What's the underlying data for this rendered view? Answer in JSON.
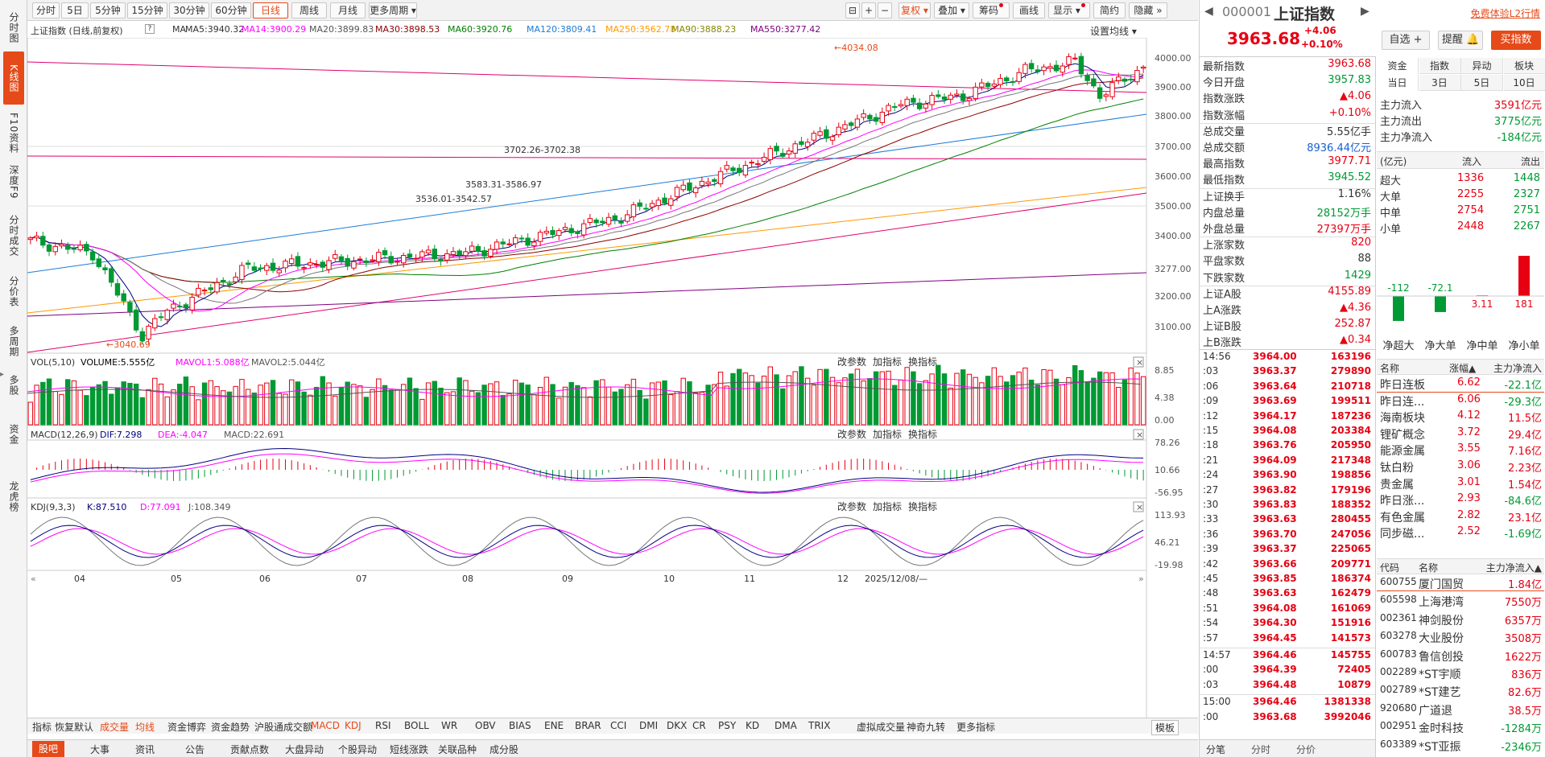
{
  "left_tabs": [
    "分时图",
    "K线图",
    "F10资料",
    "深度F9",
    "分时成交",
    "分价表",
    "多周期",
    "多股",
    "资金",
    "龙虎榜"
  ],
  "toolbar": {
    "periods": [
      "分时",
      "5日",
      "5分钟",
      "15分钟",
      "30分钟",
      "60分钟",
      "日线",
      "周线",
      "月线",
      "更多周期 ▾"
    ],
    "active_period": "日线",
    "icons": [
      "⊟",
      "+",
      "−"
    ],
    "right": [
      "复权 ▾",
      "叠加 ▾",
      "筹码",
      "画线",
      "显示 ▾",
      "简约",
      "隐藏 »"
    ]
  },
  "ma": {
    "title": "上证指数 (日线,前复权)",
    "items": [
      {
        "t": "MA",
        "c": "#333333"
      },
      {
        "t": "MA5:3940.32",
        "c": "#333333"
      },
      {
        "t": "MA14:3900.29",
        "c": "#ff00ff"
      },
      {
        "t": "MA20:3899.83",
        "c": "#555555"
      },
      {
        "t": "MA30:3898.53",
        "c": "#8b0000"
      },
      {
        "t": "MA60:3920.76",
        "c": "#008000"
      },
      {
        "t": "MA120:3809.41",
        "c": "#1e7bd6"
      },
      {
        "t": "MA250:3562.78",
        "c": "#ff9900"
      },
      {
        "t": "MA90:3888.23",
        "c": "#888800"
      },
      {
        "t": "MA550:3277.42",
        "c": "#800080"
      }
    ],
    "settings": "设置均线 ▾"
  },
  "price_axis": [
    "4000.00",
    "3900.00",
    "3800.00",
    "3700.00",
    "3600.00",
    "3500.00",
    "3400.00",
    "3277.00",
    "3200.00",
    "3100.00"
  ],
  "annotations": {
    "high": "←4034.08",
    "low": "←3040.69",
    "a1": "3702.26-3702.38",
    "a2": "3583.31-3586.97",
    "a3": "3536.01-3542.57"
  },
  "vol": {
    "title": "VOL(5,10)",
    "volume": "VOLUME:5.555亿",
    "mavol1": "MAVOL1:5.088亿",
    "mavol2": "MAVOL2:5.044亿",
    "axis": [
      "8.85",
      "4.38",
      "0.00"
    ]
  },
  "macd": {
    "title": "MACD(12,26,9)",
    "dif": "DIF:7.298",
    "dea": "DEA:-4.047",
    "macd": "MACD:22.691",
    "axis": [
      "78.26",
      "10.66",
      "-56.95"
    ]
  },
  "kdj": {
    "title": "KDJ(9,3,3)",
    "k": "K:87.510",
    "d": "D:77.091",
    "j": "J:108.349",
    "axis": [
      "113.93",
      "46.21",
      "-19.98"
    ]
  },
  "pane_tools": [
    "改参数",
    "加指标",
    "换指标"
  ],
  "months": [
    "04",
    "05",
    "06",
    "07",
    "08",
    "09",
    "10",
    "11",
    "12",
    "2025/12/08/—"
  ],
  "indicator_tabs": [
    "指标",
    "恢复默认",
    "成交量",
    "均线",
    "资金博弈",
    "资金趋势",
    "沪股通成交额",
    "MACD",
    "KDJ",
    "RSI",
    "BOLL",
    "WR",
    "OBV",
    "BIAS",
    "ENE",
    "BRAR",
    "CCI",
    "DMI",
    "DKX",
    "CR",
    "PSY",
    "KD",
    "DMA",
    "TRIX",
    "虚拟成交量",
    "神奇九转",
    "更多指标"
  ],
  "indicator_mode": "模板",
  "bottom_tabs": [
    "股吧",
    "大事",
    "资讯",
    "公告",
    "贡献点数",
    "大盘异动",
    "个股异动",
    "短线涨跌",
    "关联品种",
    "成分股"
  ],
  "stock": {
    "code": "000001",
    "name": "上证指数",
    "price": "3963.68",
    "change": "+4.06",
    "pct": "+0.10%",
    "free": "免费体验L2行情",
    "btns": [
      "自选 +",
      "提醒 🔔",
      "买指数"
    ]
  },
  "quote": [
    {
      "l": "最新指数",
      "v": "3963.68",
      "c": "red"
    },
    {
      "l": "今日开盘",
      "v": "3957.83",
      "c": "green"
    },
    {
      "l": "指数涨跌",
      "v": "▲4.06",
      "c": "red"
    },
    {
      "l": "指数涨幅",
      "v": "+0.10%",
      "c": "red"
    },
    {
      "l": "总成交量",
      "v": "5.55亿手",
      "c": "black"
    },
    {
      "l": "总成交额",
      "v": "8936.44亿元",
      "c": "blue"
    },
    {
      "l": "最高指数",
      "v": "3977.71",
      "c": "red"
    },
    {
      "l": "最低指数",
      "v": "3945.52",
      "c": "green"
    },
    {
      "l": "上证换手",
      "v": "1.16%",
      "c": "black"
    },
    {
      "l": "内盘总量",
      "v": "28152万手",
      "c": "green"
    },
    {
      "l": "外盘总量",
      "v": "27397万手",
      "c": "red"
    },
    {
      "l": "上涨家数",
      "v": "820",
      "c": "red"
    },
    {
      "l": "平盘家数",
      "v": "88",
      "c": "black"
    },
    {
      "l": "下跌家数",
      "v": "1429",
      "c": "green"
    },
    {
      "l": "上证A股",
      "v": "4155.89",
      "c": "red"
    },
    {
      "l": "上A涨跌",
      "v": "▲4.36",
      "c": "red"
    },
    {
      "l": "上证B股",
      "v": "252.87",
      "c": "red"
    },
    {
      "l": "上B涨跌",
      "v": "▲0.34",
      "c": "red"
    }
  ],
  "ticks": [
    {
      "t": "14:56",
      "p": "3964.00",
      "v": "163196"
    },
    {
      "t": ":03",
      "p": "3963.37",
      "v": "279890"
    },
    {
      "t": ":06",
      "p": "3963.64",
      "v": "210718"
    },
    {
      "t": ":09",
      "p": "3963.69",
      "v": "199511"
    },
    {
      "t": ":12",
      "p": "3964.17",
      "v": "187236"
    },
    {
      "t": ":15",
      "p": "3964.08",
      "v": "203384"
    },
    {
      "t": ":18",
      "p": "3963.76",
      "v": "205950"
    },
    {
      "t": ":21",
      "p": "3964.09",
      "v": "217348"
    },
    {
      "t": ":24",
      "p": "3963.90",
      "v": "198856"
    },
    {
      "t": ":27",
      "p": "3963.82",
      "v": "179196"
    },
    {
      "t": ":30",
      "p": "3963.83",
      "v": "188352"
    },
    {
      "t": ":33",
      "p": "3963.63",
      "v": "280455"
    },
    {
      "t": ":36",
      "p": "3963.70",
      "v": "247056"
    },
    {
      "t": ":39",
      "p": "3963.37",
      "v": "225065"
    },
    {
      "t": ":42",
      "p": "3963.66",
      "v": "209771"
    },
    {
      "t": ":45",
      "p": "3963.85",
      "v": "186374"
    },
    {
      "t": ":48",
      "p": "3963.63",
      "v": "162479"
    },
    {
      "t": ":51",
      "p": "3964.08",
      "v": "161069"
    },
    {
      "t": ":54",
      "p": "3964.30",
      "v": "151916"
    },
    {
      "t": ":57",
      "p": "3964.45",
      "v": "141573"
    },
    {
      "t": "14:57",
      "p": "3964.46",
      "v": "145755"
    },
    {
      "t": ":00",
      "p": "3964.39",
      "v": "72405"
    },
    {
      "t": ":03",
      "p": "3964.48",
      "v": "10879"
    },
    {
      "t": "15:00",
      "p": "3964.46",
      "v": "1381338"
    },
    {
      "t": ":00",
      "p": "3963.68",
      "v": "3992046"
    }
  ],
  "tick_tabs": [
    "分笔",
    "分时",
    "分价"
  ],
  "fund_tabs": [
    "资金",
    "指数",
    "异动",
    "板块"
  ],
  "fund_sub": [
    "当日",
    "3日",
    "5日",
    "10日"
  ],
  "fund": [
    {
      "l": "主力流入",
      "v": "3591亿元",
      "c": "red"
    },
    {
      "l": "主力流出",
      "v": "3775亿元",
      "c": "green"
    },
    {
      "l": "主力净流入",
      "v": "-184亿元",
      "c": "green"
    }
  ],
  "flow_head": [
    "(亿元)",
    "流入",
    "流出"
  ],
  "flow": [
    {
      "l": "超大",
      "i": "1336",
      "o": "1448"
    },
    {
      "l": "大单",
      "i": "2255",
      "o": "2327"
    },
    {
      "l": "中单",
      "i": "2754",
      "o": "2751"
    },
    {
      "l": "小单",
      "i": "2448",
      "o": "2267"
    }
  ],
  "net_bars": [
    {
      "name": "净超大",
      "value": -112,
      "label": "-112"
    },
    {
      "name": "净大单",
      "value": -72.1,
      "label": "-72.1"
    },
    {
      "name": "净中单",
      "value": 3.11,
      "label": "3.11"
    },
    {
      "name": "净小单",
      "value": 181,
      "label": "181"
    }
  ],
  "sector_head": [
    "名称",
    "涨幅▲",
    "主力净流入"
  ],
  "sectors": [
    {
      "n": "昨日连板",
      "p": "6.62",
      "f": "-22.1亿",
      "fc": "green"
    },
    {
      "n": "昨日连...",
      "p": "6.06",
      "f": "-29.3亿",
      "fc": "green"
    },
    {
      "n": "海南板块",
      "p": "4.12",
      "f": "11.5亿",
      "fc": "red"
    },
    {
      "n": "锂矿概念",
      "p": "3.72",
      "f": "29.4亿",
      "fc": "red"
    },
    {
      "n": "能源金属",
      "p": "3.55",
      "f": "7.16亿",
      "fc": "red"
    },
    {
      "n": "钛白粉",
      "p": "3.06",
      "f": "2.23亿",
      "fc": "red"
    },
    {
      "n": "贵金属",
      "p": "3.01",
      "f": "1.54亿",
      "fc": "red"
    },
    {
      "n": "昨日涨...",
      "p": "2.93",
      "f": "-84.6亿",
      "fc": "green"
    },
    {
      "n": "有色金属",
      "p": "2.82",
      "f": "23.1亿",
      "fc": "red"
    },
    {
      "n": "同步磁...",
      "p": "2.52",
      "f": "-1.69亿",
      "fc": "green"
    }
  ],
  "stock_head": [
    "代码",
    "名称",
    "主力净流入▲"
  ],
  "stocks": [
    {
      "c": "600755",
      "n": "厦门国贸",
      "f": "1.84亿",
      "fc": "red"
    },
    {
      "c": "605598",
      "n": "上海港湾",
      "f": "7550万",
      "fc": "red"
    },
    {
      "c": "002361",
      "n": "神剑股份",
      "f": "6357万",
      "fc": "red"
    },
    {
      "c": "603278",
      "n": "大业股份",
      "f": "3508万",
      "fc": "red"
    },
    {
      "c": "600783",
      "n": "鲁信创投",
      "f": "1622万",
      "fc": "red"
    },
    {
      "c": "002289",
      "n": "*ST宇顺",
      "f": "836万",
      "fc": "red"
    },
    {
      "c": "002789",
      "n": "*ST建艺",
      "f": "82.6万",
      "fc": "red"
    },
    {
      "c": "920680",
      "n": "广道退",
      "f": "38.5万",
      "fc": "red"
    },
    {
      "c": "002951",
      "n": "金时科技",
      "f": "-1284万",
      "fc": "green"
    },
    {
      "c": "603389",
      "n": "*ST亚振",
      "f": "-2346万",
      "fc": "green"
    }
  ]
}
